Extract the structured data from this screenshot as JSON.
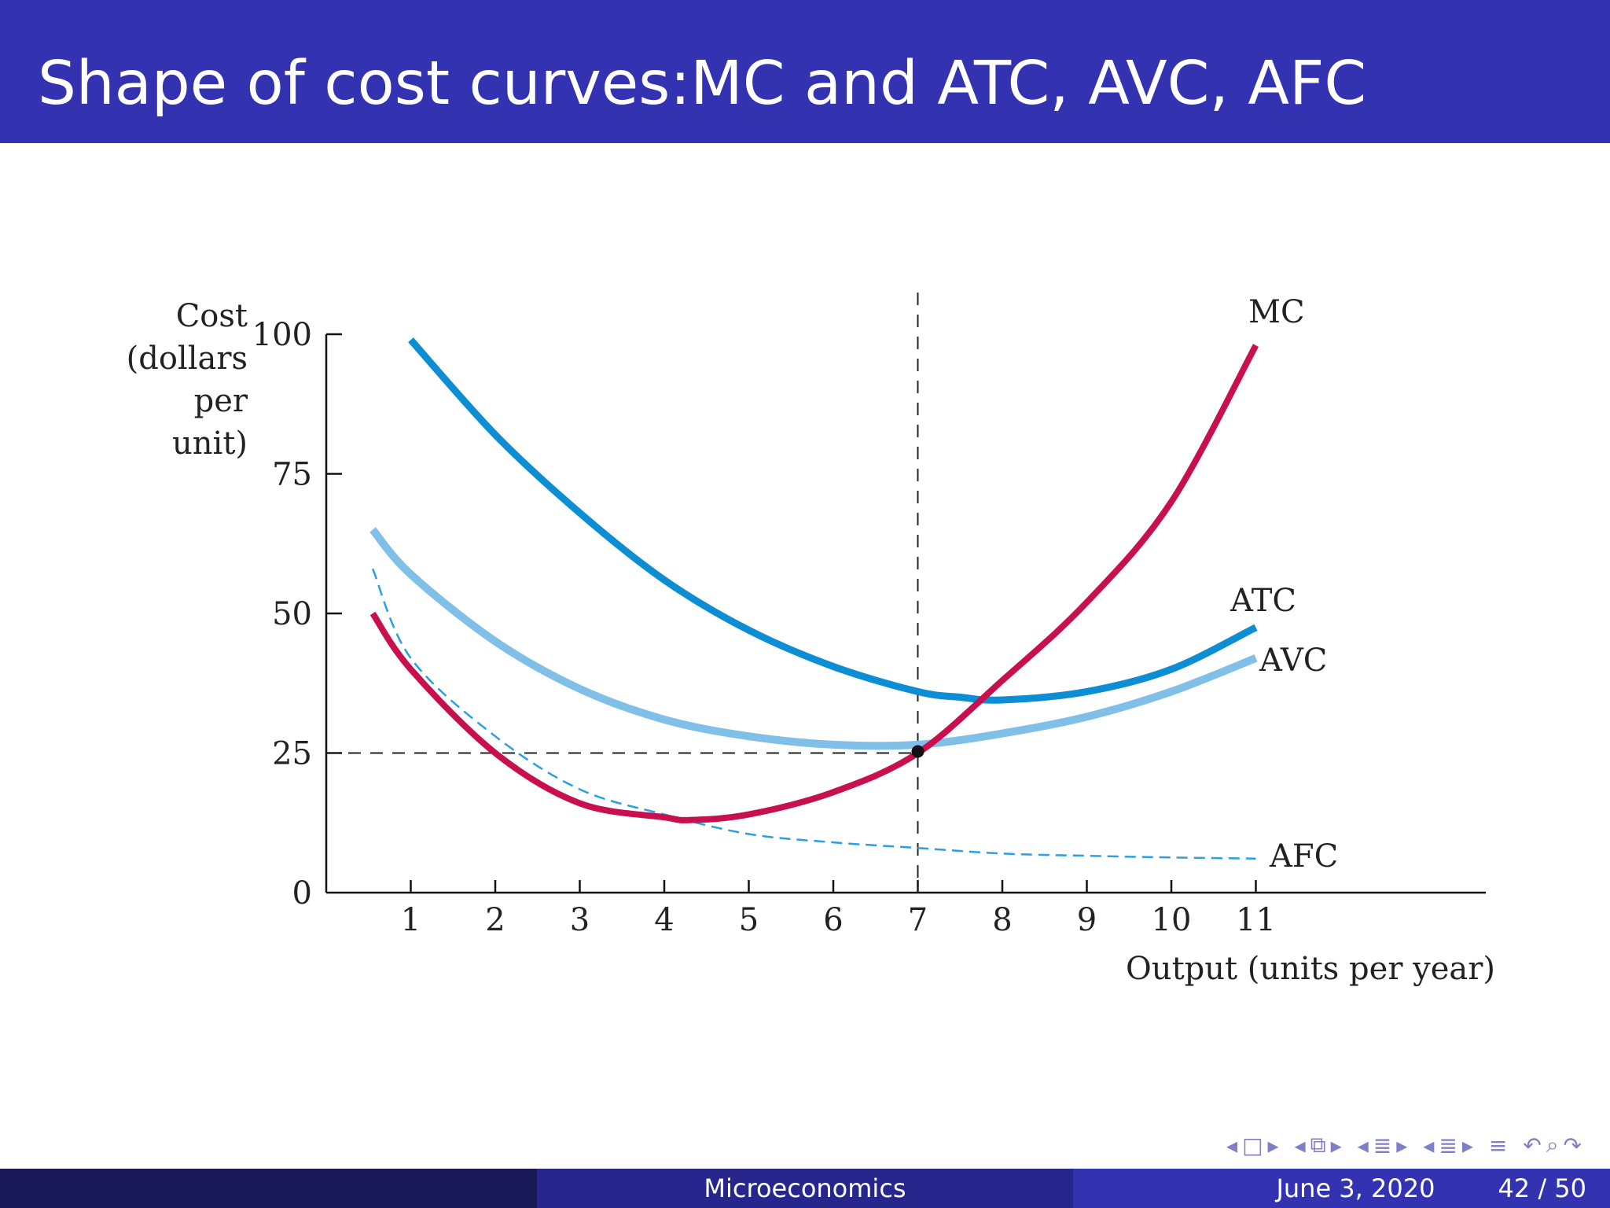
{
  "slide": {
    "title": "Shape of cost curves:MC and ATC, AVC, AFC"
  },
  "footer": {
    "center": "Microeconomics",
    "date": "June 3, 2020",
    "page": "42 / 50"
  },
  "nav_icons": [
    "arrow-left-icon",
    "frame-icon",
    "arrow-right-icon",
    "arrow-left-icon",
    "subsection-icon",
    "arrow-right-icon",
    "arrow-left-icon",
    "section-icon",
    "arrow-right-icon",
    "arrow-left-icon",
    "subsection-icon",
    "arrow-right-icon",
    "align-icon",
    "back-icon",
    "search-icon",
    "forward-icon"
  ],
  "colors": {
    "title_bg": "#3333b2",
    "atc": "#0d8ed4",
    "avc": "#7fbfe8",
    "afc": "#2aa0e0",
    "mc": "#c8104e"
  },
  "chart_data": {
    "type": "line",
    "title": "",
    "ylabel": [
      "Cost",
      "(dollars",
      "per",
      "unit)"
    ],
    "xlabel": "Output (units per year)",
    "xlim": [
      0,
      15
    ],
    "ylim": [
      0,
      100
    ],
    "xticks": [
      1,
      2,
      3,
      4,
      5,
      6,
      7,
      8,
      9,
      10,
      11
    ],
    "yticks": [
      0,
      25,
      50,
      75,
      100
    ],
    "grid": false,
    "reference": {
      "x": 7,
      "y": 25
    },
    "series": [
      {
        "name": "MC",
        "style": "solid",
        "x": [
          0.55,
          1,
          2,
          3,
          4,
          4.3,
          5,
          6,
          7,
          8,
          9,
          10,
          11.0
        ],
        "y": [
          50,
          40,
          25,
          16,
          13.5,
          13,
          14,
          18,
          25,
          38,
          52,
          70,
          98
        ]
      },
      {
        "name": "ATC",
        "style": "solid",
        "x": [
          1,
          2,
          3,
          4,
          5,
          6,
          7,
          7.5,
          8,
          9,
          10,
          11
        ],
        "y": [
          99,
          82,
          68,
          56,
          47,
          40.5,
          36,
          35,
          34.5,
          36,
          40,
          47.5
        ]
      },
      {
        "name": "AVC",
        "style": "solid",
        "x": [
          0.55,
          1,
          2,
          3,
          4,
          5,
          6,
          7,
          8,
          9,
          10,
          11
        ],
        "y": [
          65,
          57,
          45,
          36.5,
          31,
          28,
          26.5,
          26.5,
          28.5,
          31.5,
          36,
          42
        ]
      },
      {
        "name": "AFC",
        "style": "dashed",
        "x": [
          0.55,
          1,
          2,
          3,
          4,
          5,
          6,
          7,
          8,
          9,
          10,
          11
        ],
        "y": [
          58,
          42,
          28,
          18.5,
          14,
          10.5,
          9,
          8,
          7,
          6.6,
          6.3,
          6.1
        ]
      }
    ]
  }
}
